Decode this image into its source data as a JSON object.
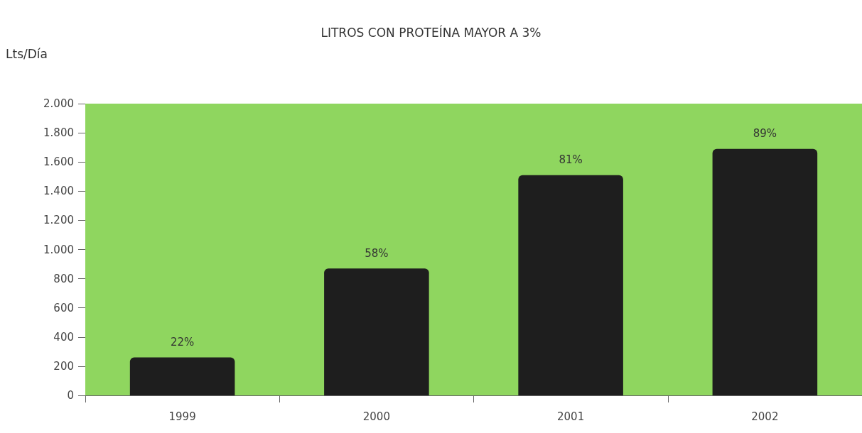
{
  "chart_data": {
    "type": "bar",
    "title": "LITROS CON PROTEÍNA MAYOR A 3%",
    "ylabel": "Lts/Día",
    "categories": [
      "1999",
      "2000",
      "2001",
      "2002"
    ],
    "values": [
      260,
      870,
      1510,
      1690
    ],
    "annotations": [
      {
        "text": "22%",
        "x": "1999",
        "y": 260
      },
      {
        "text": "58%",
        "x": "2000",
        "y": 870
      },
      {
        "text": "81%",
        "x": "2001",
        "y": 1510
      },
      {
        "text": "89%",
        "x": "2002",
        "y": 1690
      }
    ],
    "color": "#1e1e1e",
    "ylim": [
      0,
      2000
    ],
    "yticks": [
      0,
      200,
      400,
      600,
      800,
      {
        "value": 1000,
        "label": "1.000"
      },
      {
        "value": 1200,
        "label": "1.200"
      },
      {
        "value": 1400,
        "label": "1.400"
      },
      {
        "value": 1600,
        "label": "1.600"
      },
      {
        "value": 1800,
        "label": "1.800"
      },
      {
        "value": 2000,
        "label": "2.000"
      }
    ],
    "grid": false
  }
}
